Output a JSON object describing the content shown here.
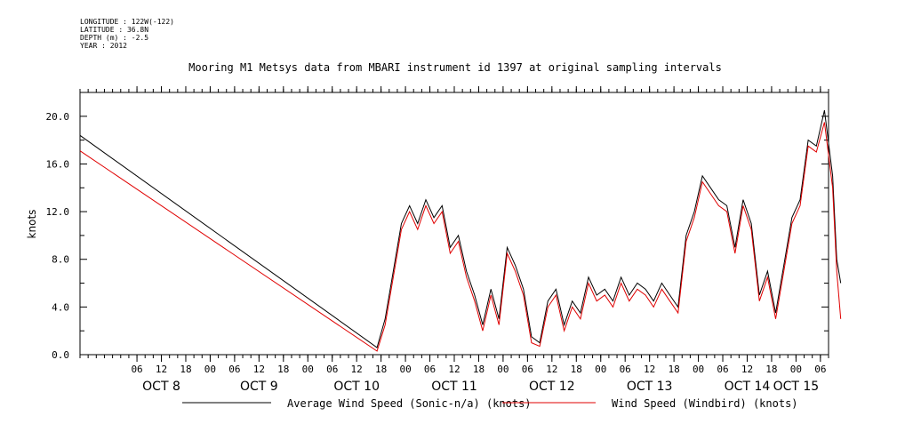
{
  "header": {
    "longitude": "LONGITUDE : 122W(-122)",
    "latitude": "LATITUDE : 36.8N",
    "depth": "DEPTH (m) : -2.5",
    "year": "YEAR : 2012"
  },
  "chart_data": {
    "type": "line",
    "title": "Mooring M1 Metsys data from MBARI instrument id 1397 at original sampling intervals",
    "ylabel": "knots",
    "xlabel": "",
    "ylim": [
      0,
      22
    ],
    "y_ticks": [
      "0.0",
      "4.0",
      "8.0",
      "12.0",
      "16.0",
      "20.0"
    ],
    "x_range_days": [
      "2012-10-07T16:00",
      "2012-10-15T08:00"
    ],
    "x_hour_ticks": [
      {
        "t": "2012-10-08T06:00",
        "label": "06"
      },
      {
        "t": "2012-10-08T12:00",
        "label": "12"
      },
      {
        "t": "2012-10-08T18:00",
        "label": "18"
      },
      {
        "t": "2012-10-09T00:00",
        "label": "00"
      },
      {
        "t": "2012-10-09T06:00",
        "label": "06"
      },
      {
        "t": "2012-10-09T12:00",
        "label": "12"
      },
      {
        "t": "2012-10-09T18:00",
        "label": "18"
      },
      {
        "t": "2012-10-10T00:00",
        "label": "00"
      },
      {
        "t": "2012-10-10T06:00",
        "label": "06"
      },
      {
        "t": "2012-10-10T12:00",
        "label": "12"
      },
      {
        "t": "2012-10-10T18:00",
        "label": "18"
      },
      {
        "t": "2012-10-11T00:00",
        "label": "00"
      },
      {
        "t": "2012-10-11T06:00",
        "label": "06"
      },
      {
        "t": "2012-10-11T12:00",
        "label": "12"
      },
      {
        "t": "2012-10-11T18:00",
        "label": "18"
      },
      {
        "t": "2012-10-12T00:00",
        "label": "00"
      },
      {
        "t": "2012-10-12T06:00",
        "label": "06"
      },
      {
        "t": "2012-10-12T12:00",
        "label": "12"
      },
      {
        "t": "2012-10-12T18:00",
        "label": "18"
      },
      {
        "t": "2012-10-13T00:00",
        "label": "00"
      },
      {
        "t": "2012-10-13T06:00",
        "label": "06"
      },
      {
        "t": "2012-10-13T12:00",
        "label": "12"
      },
      {
        "t": "2012-10-13T18:00",
        "label": "18"
      },
      {
        "t": "2012-10-14T00:00",
        "label": "00"
      },
      {
        "t": "2012-10-14T06:00",
        "label": "06"
      },
      {
        "t": "2012-10-14T12:00",
        "label": "12"
      },
      {
        "t": "2012-10-14T18:00",
        "label": "18"
      },
      {
        "t": "2012-10-15T00:00",
        "label": "00"
      },
      {
        "t": "2012-10-15T06:00",
        "label": "06"
      }
    ],
    "x_day_labels": [
      {
        "t": "2012-10-08T12:00",
        "label": "OCT  8"
      },
      {
        "t": "2012-10-09T12:00",
        "label": "OCT  9"
      },
      {
        "t": "2012-10-10T12:00",
        "label": "OCT 10"
      },
      {
        "t": "2012-10-11T12:00",
        "label": "OCT 11"
      },
      {
        "t": "2012-10-12T12:00",
        "label": "OCT 12"
      },
      {
        "t": "2012-10-13T12:00",
        "label": "OCT 13"
      },
      {
        "t": "2012-10-14T12:00",
        "label": "OCT 14"
      },
      {
        "t": "2012-10-15T00:00",
        "label": "OCT 15"
      }
    ],
    "series": [
      {
        "name": "Average Wind Speed (Sonic-n/a) (knots)",
        "color": "#000000",
        "points": [
          [
            "2012-10-07T16:00",
            18.4
          ],
          [
            "2012-10-10T17:00",
            0.6
          ],
          [
            "2012-10-10T19:00",
            3.0
          ],
          [
            "2012-10-10T21:00",
            7.0
          ],
          [
            "2012-10-10T23:00",
            11.0
          ],
          [
            "2012-10-11T01:00",
            12.5
          ],
          [
            "2012-10-11T03:00",
            11.0
          ],
          [
            "2012-10-11T05:00",
            13.0
          ],
          [
            "2012-10-11T07:00",
            11.5
          ],
          [
            "2012-10-11T09:00",
            12.5
          ],
          [
            "2012-10-11T11:00",
            9.0
          ],
          [
            "2012-10-11T13:00",
            10.0
          ],
          [
            "2012-10-11T15:00",
            7.0
          ],
          [
            "2012-10-11T17:00",
            5.0
          ],
          [
            "2012-10-11T19:00",
            2.5
          ],
          [
            "2012-10-11T21:00",
            5.5
          ],
          [
            "2012-10-11T23:00",
            3.0
          ],
          [
            "2012-10-12T01:00",
            9.0
          ],
          [
            "2012-10-12T03:00",
            7.5
          ],
          [
            "2012-10-12T05:00",
            5.5
          ],
          [
            "2012-10-12T07:00",
            1.5
          ],
          [
            "2012-10-12T09:00",
            1.0
          ],
          [
            "2012-10-12T11:00",
            4.5
          ],
          [
            "2012-10-12T13:00",
            5.5
          ],
          [
            "2012-10-12T15:00",
            2.5
          ],
          [
            "2012-10-12T17:00",
            4.5
          ],
          [
            "2012-10-12T19:00",
            3.5
          ],
          [
            "2012-10-12T21:00",
            6.5
          ],
          [
            "2012-10-12T23:00",
            5.0
          ],
          [
            "2012-10-13T01:00",
            5.5
          ],
          [
            "2012-10-13T03:00",
            4.5
          ],
          [
            "2012-10-13T05:00",
            6.5
          ],
          [
            "2012-10-13T07:00",
            5.0
          ],
          [
            "2012-10-13T09:00",
            6.0
          ],
          [
            "2012-10-13T11:00",
            5.5
          ],
          [
            "2012-10-13T13:00",
            4.5
          ],
          [
            "2012-10-13T15:00",
            6.0
          ],
          [
            "2012-10-13T17:00",
            5.0
          ],
          [
            "2012-10-13T19:00",
            4.0
          ],
          [
            "2012-10-13T21:00",
            10.0
          ],
          [
            "2012-10-13T23:00",
            12.0
          ],
          [
            "2012-10-14T01:00",
            15.0
          ],
          [
            "2012-10-14T03:00",
            14.0
          ],
          [
            "2012-10-14T05:00",
            13.0
          ],
          [
            "2012-10-14T07:00",
            12.5
          ],
          [
            "2012-10-14T09:00",
            9.0
          ],
          [
            "2012-10-14T11:00",
            13.0
          ],
          [
            "2012-10-14T13:00",
            11.0
          ],
          [
            "2012-10-14T15:00",
            5.0
          ],
          [
            "2012-10-14T17:00",
            7.0
          ],
          [
            "2012-10-14T19:00",
            3.5
          ],
          [
            "2012-10-14T21:00",
            7.5
          ],
          [
            "2012-10-14T23:00",
            11.5
          ],
          [
            "2012-10-15T01:00",
            13.0
          ],
          [
            "2012-10-15T03:00",
            18.0
          ],
          [
            "2012-10-15T05:00",
            17.5
          ],
          [
            "2012-10-15T07:00",
            20.5
          ],
          [
            "2012-10-15T09:00",
            15.0
          ],
          [
            "2012-10-15T10:00",
            8.0
          ],
          [
            "2012-10-15T11:00",
            6.0
          ]
        ]
      },
      {
        "name": "Wind Speed (Windbird) (knots)",
        "color": "#e00000",
        "points": [
          [
            "2012-10-07T16:00",
            17.1
          ],
          [
            "2012-10-10T17:00",
            0.3
          ],
          [
            "2012-10-10T19:00",
            2.5
          ],
          [
            "2012-10-10T21:00",
            6.5
          ],
          [
            "2012-10-10T23:00",
            10.5
          ],
          [
            "2012-10-11T01:00",
            12.0
          ],
          [
            "2012-10-11T03:00",
            10.5
          ],
          [
            "2012-10-11T05:00",
            12.5
          ],
          [
            "2012-10-11T07:00",
            11.0
          ],
          [
            "2012-10-11T09:00",
            12.0
          ],
          [
            "2012-10-11T11:00",
            8.5
          ],
          [
            "2012-10-11T13:00",
            9.5
          ],
          [
            "2012-10-11T15:00",
            6.5
          ],
          [
            "2012-10-11T17:00",
            4.5
          ],
          [
            "2012-10-11T19:00",
            2.0
          ],
          [
            "2012-10-11T21:00",
            5.0
          ],
          [
            "2012-10-11T23:00",
            2.5
          ],
          [
            "2012-10-12T01:00",
            8.5
          ],
          [
            "2012-10-12T03:00",
            7.0
          ],
          [
            "2012-10-12T05:00",
            5.0
          ],
          [
            "2012-10-12T07:00",
            1.0
          ],
          [
            "2012-10-12T09:00",
            0.7
          ],
          [
            "2012-10-12T11:00",
            4.0
          ],
          [
            "2012-10-12T13:00",
            5.0
          ],
          [
            "2012-10-12T15:00",
            2.0
          ],
          [
            "2012-10-12T17:00",
            4.0
          ],
          [
            "2012-10-12T19:00",
            3.0
          ],
          [
            "2012-10-12T21:00",
            6.0
          ],
          [
            "2012-10-12T23:00",
            4.5
          ],
          [
            "2012-10-13T01:00",
            5.0
          ],
          [
            "2012-10-13T03:00",
            4.0
          ],
          [
            "2012-10-13T05:00",
            6.0
          ],
          [
            "2012-10-13T07:00",
            4.5
          ],
          [
            "2012-10-13T09:00",
            5.5
          ],
          [
            "2012-10-13T11:00",
            5.0
          ],
          [
            "2012-10-13T13:00",
            4.0
          ],
          [
            "2012-10-13T15:00",
            5.5
          ],
          [
            "2012-10-13T17:00",
            4.5
          ],
          [
            "2012-10-13T19:00",
            3.5
          ],
          [
            "2012-10-13T21:00",
            9.5
          ],
          [
            "2012-10-13T23:00",
            11.5
          ],
          [
            "2012-10-14T01:00",
            14.5
          ],
          [
            "2012-10-14T03:00",
            13.5
          ],
          [
            "2012-10-14T05:00",
            12.5
          ],
          [
            "2012-10-14T07:00",
            12.0
          ],
          [
            "2012-10-14T09:00",
            8.5
          ],
          [
            "2012-10-14T11:00",
            12.5
          ],
          [
            "2012-10-14T13:00",
            10.5
          ],
          [
            "2012-10-14T15:00",
            4.5
          ],
          [
            "2012-10-14T17:00",
            6.5
          ],
          [
            "2012-10-14T19:00",
            3.0
          ],
          [
            "2012-10-14T21:00",
            7.0
          ],
          [
            "2012-10-14T23:00",
            11.0
          ],
          [
            "2012-10-15T01:00",
            12.5
          ],
          [
            "2012-10-15T03:00",
            17.5
          ],
          [
            "2012-10-15T05:00",
            17.0
          ],
          [
            "2012-10-15T07:00",
            19.5
          ],
          [
            "2012-10-15T09:00",
            14.0
          ],
          [
            "2012-10-15T10:00",
            7.0
          ],
          [
            "2012-10-15T11:00",
            3.0
          ]
        ]
      }
    ],
    "legend_position": "bottom"
  }
}
